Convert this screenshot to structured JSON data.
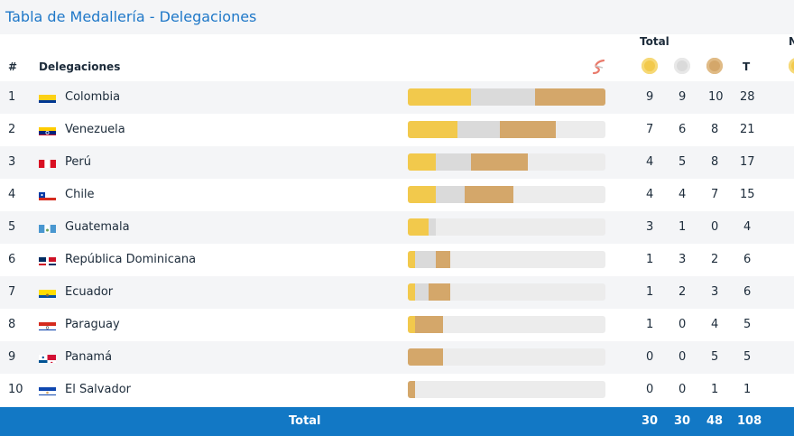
{
  "header": {
    "title": "Tabla de Medallería - Delegaciones"
  },
  "columns": {
    "rank": "#",
    "delegation": "Delegaciones",
    "total_group": "Total",
    "total": "T",
    "next_group_partial": "N"
  },
  "colors": {
    "gold": "#f2c94c",
    "silver": "#dadada",
    "bronze": "#d4a76a",
    "accent": "#1278c5"
  },
  "rows": [
    {
      "rank": "1",
      "name": "Colombia",
      "gold": "9",
      "silver": "9",
      "bronze": "10",
      "total": "28",
      "flag": "colombia"
    },
    {
      "rank": "2",
      "name": "Venezuela",
      "gold": "7",
      "silver": "6",
      "bronze": "8",
      "total": "21",
      "flag": "venezuela"
    },
    {
      "rank": "3",
      "name": "Perú",
      "gold": "4",
      "silver": "5",
      "bronze": "8",
      "total": "17",
      "flag": "peru"
    },
    {
      "rank": "4",
      "name": "Chile",
      "gold": "4",
      "silver": "4",
      "bronze": "7",
      "total": "15",
      "flag": "chile"
    },
    {
      "rank": "5",
      "name": "Guatemala",
      "gold": "3",
      "silver": "1",
      "bronze": "0",
      "total": "4",
      "flag": "guatemala"
    },
    {
      "rank": "6",
      "name": "República Dominicana",
      "gold": "1",
      "silver": "3",
      "bronze": "2",
      "total": "6",
      "flag": "dominican-republic"
    },
    {
      "rank": "7",
      "name": "Ecuador",
      "gold": "1",
      "silver": "2",
      "bronze": "3",
      "total": "6",
      "flag": "ecuador"
    },
    {
      "rank": "8",
      "name": "Paraguay",
      "gold": "1",
      "silver": "0",
      "bronze": "4",
      "total": "5",
      "flag": "paraguay"
    },
    {
      "rank": "9",
      "name": "Panamá",
      "gold": "0",
      "silver": "0",
      "bronze": "5",
      "total": "5",
      "flag": "panama"
    },
    {
      "rank": "10",
      "name": "El Salvador",
      "gold": "0",
      "silver": "0",
      "bronze": "1",
      "total": "1",
      "flag": "el-salvador"
    }
  ],
  "totals": {
    "label": "Total",
    "gold": "30",
    "silver": "30",
    "bronze": "48",
    "total": "108"
  }
}
